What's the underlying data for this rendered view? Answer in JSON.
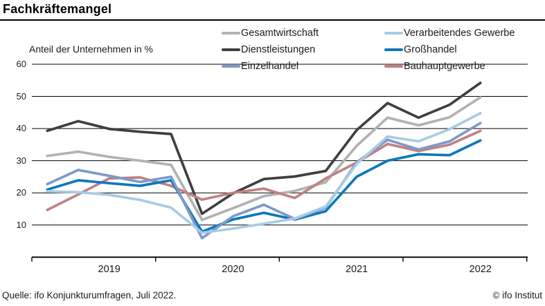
{
  "header": {
    "title": "Fachkräftemangel"
  },
  "footer": {
    "source": "Quelle: ifo Konjunkturumfragen, Juli 2022.",
    "copyright": "© ifo Institut"
  },
  "chart_data": {
    "type": "line",
    "title": "Fachkräftemangel",
    "ylabel": "Anteil der Unternehmen in %",
    "xlabel": "",
    "ylim": [
      0,
      62
    ],
    "grid": "horizontal",
    "legend_position": "top-right, two columns",
    "y_ticks": [
      10,
      20,
      30,
      40,
      50,
      60
    ],
    "x_tick_labels": [
      "2019",
      "2020",
      "2021",
      "2022"
    ],
    "categories": [
      "2019-Q1",
      "2019-Q2",
      "2019-Q3",
      "2019-Q4",
      "2020-Q1",
      "2020-Q2",
      "2020-Q3",
      "2020-Q4",
      "2021-Q1",
      "2021-Q2",
      "2021-Q3",
      "2021-Q4",
      "2022-Q1",
      "2022-Q2",
      "2022-Q3"
    ],
    "series": [
      {
        "name": "Gesamtwirtschaft",
        "color": "#b2b2b2",
        "values": [
          31.5,
          32.8,
          31.2,
          30.0,
          28.7,
          11.6,
          15.2,
          19.0,
          20.6,
          23.3,
          34.6,
          43.4,
          41.0,
          43.5,
          49.7
        ]
      },
      {
        "name": "Dienstleistungen",
        "color": "#3f3f3f",
        "values": [
          39.3,
          42.3,
          39.9,
          39.0,
          38.3,
          13.5,
          19.8,
          24.3,
          25.1,
          26.8,
          39.5,
          47.9,
          43.4,
          47.4,
          54.2
        ]
      },
      {
        "name": "Bauhauptgewerbe",
        "color": "#c08182",
        "values": [
          14.7,
          19.5,
          24.5,
          24.8,
          22.2,
          17.9,
          20.0,
          21.3,
          18.4,
          24.5,
          29.4,
          35.2,
          33.0,
          35.0,
          39.3
        ]
      },
      {
        "name": "Großhandel",
        "color": "#0e77bb",
        "values": [
          21.0,
          23.9,
          23.0,
          22.2,
          23.9,
          7.9,
          11.7,
          13.8,
          11.7,
          14.3,
          25.0,
          30.0,
          32.0,
          31.7,
          36.3
        ]
      },
      {
        "name": "Einzelhandel",
        "color": "#7e99c8",
        "values": [
          22.7,
          27.1,
          25.3,
          23.4,
          25.0,
          5.9,
          12.7,
          16.3,
          11.9,
          15.4,
          29.5,
          36.5,
          33.5,
          36.0,
          41.7
        ]
      },
      {
        "name": "Verarbeitendes Gewerbe",
        "color": "#a8cbe4",
        "values": [
          20.5,
          20.2,
          19.4,
          17.8,
          15.4,
          7.6,
          8.9,
          10.4,
          12.0,
          15.8,
          29.0,
          37.5,
          36.0,
          39.8,
          44.8
        ]
      }
    ],
    "legend_rows": [
      [
        "Gesamtwirtschaft",
        "Verarbeitendes Gewerbe"
      ],
      [
        "Dienstleistungen",
        "Großhandel"
      ],
      [
        "Einzelhandel",
        "Bauhauptgewerbe"
      ]
    ]
  }
}
